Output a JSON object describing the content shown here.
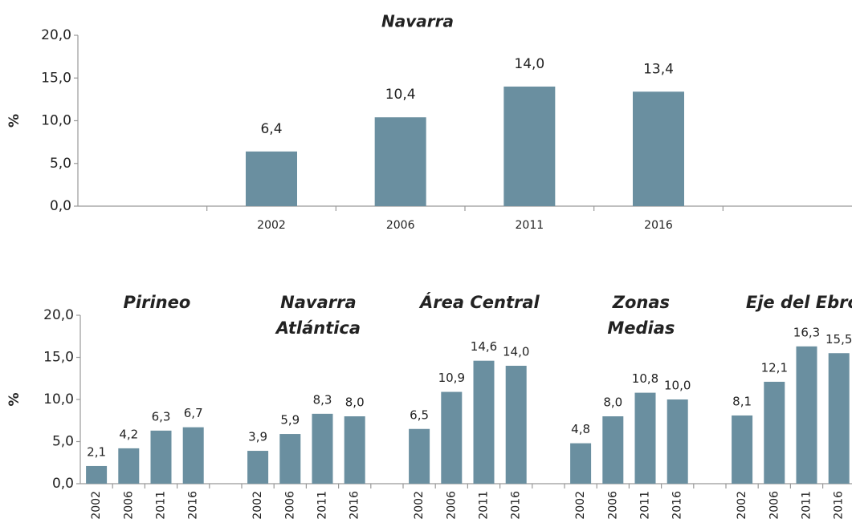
{
  "chart_data": [
    {
      "type": "bar",
      "title": "Navarra",
      "y_label": "%",
      "categories": [
        null,
        "2002",
        "2006",
        "2011",
        "2016",
        null
      ],
      "values": [
        null,
        6.4,
        10.4,
        14.0,
        13.4,
        null
      ],
      "value_labels": [
        null,
        "6,4",
        "10,4",
        "14,0",
        "13,4",
        null
      ],
      "color": "#6a8fa0",
      "ylim": [
        0,
        20
      ],
      "yticks": [
        {
          "value": 0,
          "label": "0,0"
        },
        {
          "value": 5,
          "label": "5,0"
        },
        {
          "value": 10,
          "label": "10,0"
        },
        {
          "value": 15,
          "label": "15,0"
        },
        {
          "value": 20,
          "label": "20,0"
        }
      ]
    },
    {
      "type": "grouped_bar",
      "y_label": "%",
      "categories": [
        "2002",
        "2006",
        "2011",
        "2016"
      ],
      "groups": [
        {
          "label": [
            "Pirineo"
          ],
          "values": [
            2.1,
            4.2,
            6.3,
            6.7
          ],
          "value_labels": [
            "2,1",
            "4,2",
            "6,3",
            "6,7"
          ]
        },
        {
          "label": [
            "Navarra",
            "Atlántica"
          ],
          "values": [
            3.9,
            5.9,
            8.3,
            8.0
          ],
          "value_labels": [
            "3,9",
            "5,9",
            "8,3",
            "8,0"
          ]
        },
        {
          "label": [
            "Área Central"
          ],
          "values": [
            6.5,
            10.9,
            14.6,
            14.0
          ],
          "value_labels": [
            "6,5",
            "10,9",
            "14,6",
            "14,0"
          ]
        },
        {
          "label": [
            "Zonas",
            "Medias"
          ],
          "values": [
            4.8,
            8.0,
            10.8,
            10.0
          ],
          "value_labels": [
            "4,8",
            "8,0",
            "10,8",
            "10,0"
          ]
        },
        {
          "label": [
            "Eje del Ebro"
          ],
          "values": [
            8.1,
            12.1,
            16.3,
            15.5
          ],
          "value_labels": [
            "8,1",
            "12,1",
            "16,3",
            "15,5"
          ]
        }
      ],
      "color": "#6a8fa0",
      "ylim": [
        0,
        20
      ],
      "yticks": [
        {
          "value": 0,
          "label": "0,0"
        },
        {
          "value": 5,
          "label": "5,0"
        },
        {
          "value": 10,
          "label": "10,0"
        },
        {
          "value": 15,
          "label": "15,0"
        },
        {
          "value": 20,
          "label": "20,0"
        }
      ]
    }
  ]
}
